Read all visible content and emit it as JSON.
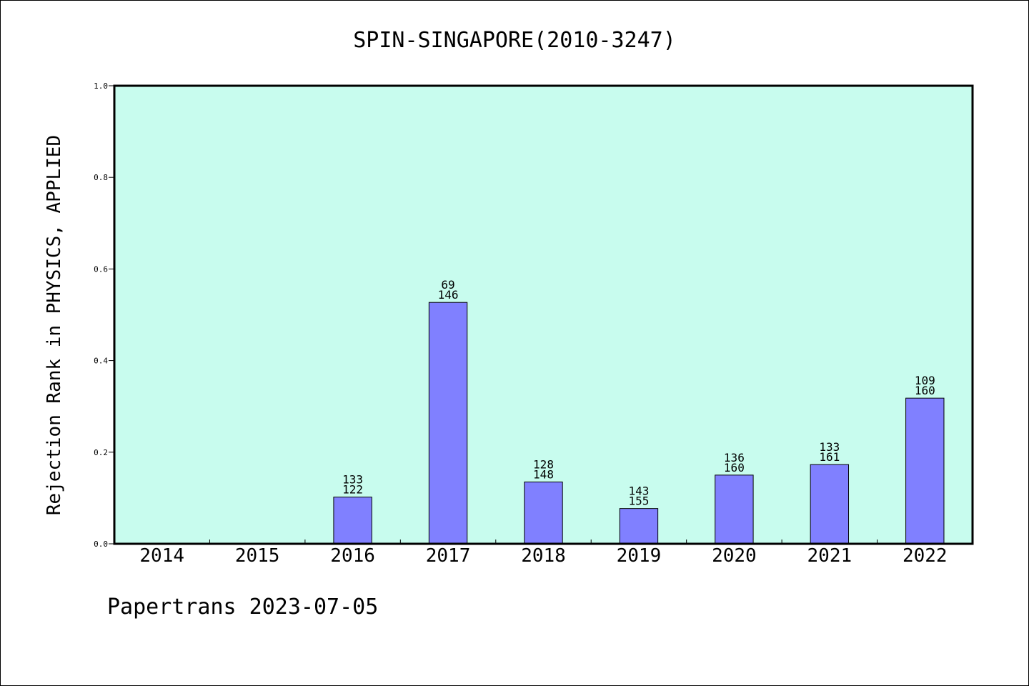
{
  "footer": "Papertrans 2023-07-05",
  "colors": {
    "plot_background": "#c8fcee",
    "bar_fill": "#8080ff",
    "bar_stroke": "#000000",
    "axis": "#000000"
  },
  "chart_data": {
    "type": "bar",
    "title": "SPIN-SINGAPORE(2010-3247)",
    "xlabel": "",
    "ylabel": "Rejection Rank in PHYSICS, APPLIED",
    "ylim": [
      0,
      1.0
    ],
    "yticks": [
      "0.0",
      "0.2",
      "0.4",
      "0.6",
      "0.8",
      "1.0"
    ],
    "grid": false,
    "categories": [
      "2014",
      "2015",
      "2016",
      "2017",
      "2018",
      "2019",
      "2020",
      "2021",
      "2022"
    ],
    "values": [
      0,
      0,
      0.102,
      0.527,
      0.135,
      0.077,
      0.15,
      0.173,
      0.318
    ],
    "labels_top": [
      "",
      "",
      "133",
      "69",
      "128",
      "143",
      "136",
      "133",
      "109"
    ],
    "labels_bottom": [
      "",
      "",
      "122",
      "146",
      "148",
      "155",
      "160",
      "161",
      "160"
    ]
  }
}
